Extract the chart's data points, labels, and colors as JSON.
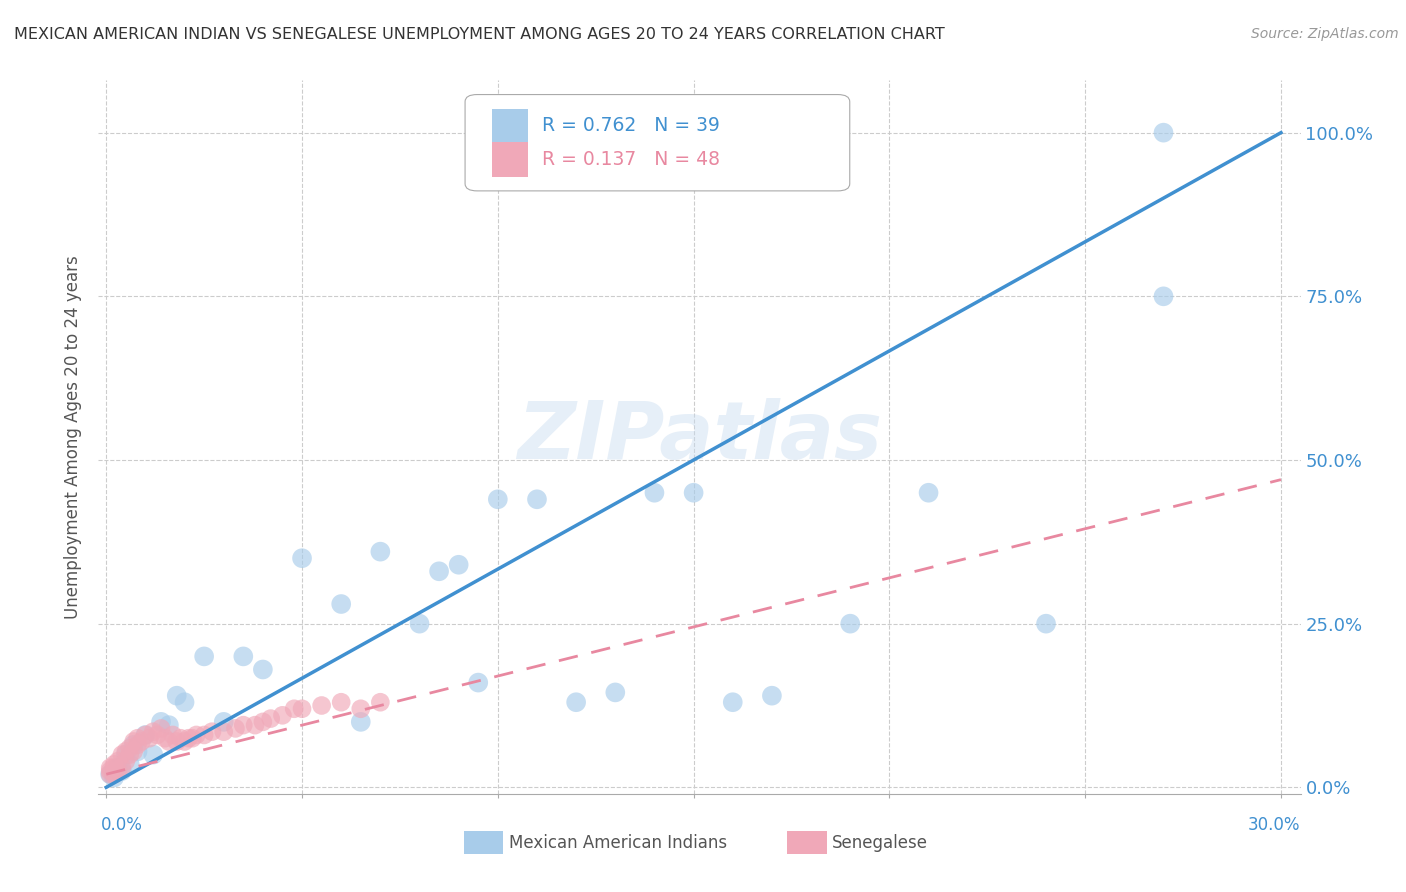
{
  "title": "MEXICAN AMERICAN INDIAN VS SENEGALESE UNEMPLOYMENT AMONG AGES 20 TO 24 YEARS CORRELATION CHART",
  "source": "Source: ZipAtlas.com",
  "ylabel": "Unemployment Among Ages 20 to 24 years",
  "ytick_labels_right": [
    "100.0%",
    "75.0%",
    "50.0%",
    "25.0%",
    "0.0%"
  ],
  "ytick_values": [
    0,
    0.25,
    0.5,
    0.75,
    1.0
  ],
  "xtick_values": [
    0,
    0.05,
    0.1,
    0.15,
    0.2,
    0.25,
    0.3
  ],
  "xlim": [
    -0.002,
    0.305
  ],
  "ylim": [
    -0.01,
    1.08
  ],
  "watermark": "ZIPatlas",
  "legend1_label": "Mexican American Indians",
  "legend2_label": "Senegalese",
  "R1": "0.762",
  "N1": "39",
  "R2": "0.137",
  "N2": "48",
  "blue_scatter_color": "#A8CCEA",
  "pink_scatter_color": "#F0A8B8",
  "blue_line_color": "#4090D0",
  "pink_line_color": "#E888A0",
  "grid_color": "#CCCCCC",
  "background_color": "#FFFFFF",
  "mai_x": [
    0.001,
    0.002,
    0.003,
    0.004,
    0.005,
    0.006,
    0.007,
    0.008,
    0.01,
    0.012,
    0.014,
    0.016,
    0.018,
    0.02,
    0.025,
    0.03,
    0.035,
    0.04,
    0.05,
    0.06,
    0.065,
    0.07,
    0.08,
    0.085,
    0.09,
    0.095,
    0.1,
    0.11,
    0.12,
    0.13,
    0.14,
    0.15,
    0.16,
    0.17,
    0.19,
    0.21,
    0.24,
    0.27,
    0.27
  ],
  "mai_y": [
    0.02,
    0.015,
    0.03,
    0.025,
    0.05,
    0.035,
    0.065,
    0.055,
    0.08,
    0.05,
    0.1,
    0.095,
    0.14,
    0.13,
    0.2,
    0.1,
    0.2,
    0.18,
    0.35,
    0.28,
    0.1,
    0.36,
    0.25,
    0.33,
    0.34,
    0.16,
    0.44,
    0.44,
    0.13,
    0.145,
    0.45,
    0.45,
    0.13,
    0.14,
    0.25,
    0.45,
    0.25,
    0.75,
    1.0
  ],
  "sen_x": [
    0.001,
    0.001,
    0.001,
    0.002,
    0.002,
    0.002,
    0.003,
    0.003,
    0.004,
    0.004,
    0.005,
    0.005,
    0.006,
    0.006,
    0.007,
    0.007,
    0.008,
    0.008,
    0.009,
    0.01,
    0.011,
    0.012,
    0.013,
    0.014,
    0.015,
    0.016,
    0.017,
    0.018,
    0.019,
    0.02,
    0.021,
    0.022,
    0.023,
    0.025,
    0.027,
    0.03,
    0.033,
    0.035,
    0.038,
    0.04,
    0.042,
    0.045,
    0.048,
    0.05,
    0.055,
    0.06,
    0.065,
    0.07
  ],
  "sen_y": [
    0.02,
    0.025,
    0.03,
    0.02,
    0.03,
    0.035,
    0.025,
    0.04,
    0.03,
    0.05,
    0.04,
    0.055,
    0.05,
    0.06,
    0.055,
    0.07,
    0.065,
    0.075,
    0.07,
    0.08,
    0.075,
    0.085,
    0.08,
    0.09,
    0.075,
    0.07,
    0.08,
    0.07,
    0.075,
    0.07,
    0.075,
    0.075,
    0.08,
    0.08,
    0.085,
    0.085,
    0.09,
    0.095,
    0.095,
    0.1,
    0.105,
    0.11,
    0.12,
    0.12,
    0.125,
    0.13,
    0.12,
    0.13
  ],
  "blue_trendline_x": [
    0.0,
    0.3
  ],
  "blue_trendline_y": [
    0.0,
    1.0
  ],
  "pink_trendline_x": [
    0.0,
    0.3
  ],
  "pink_trendline_y": [
    0.02,
    0.47
  ]
}
